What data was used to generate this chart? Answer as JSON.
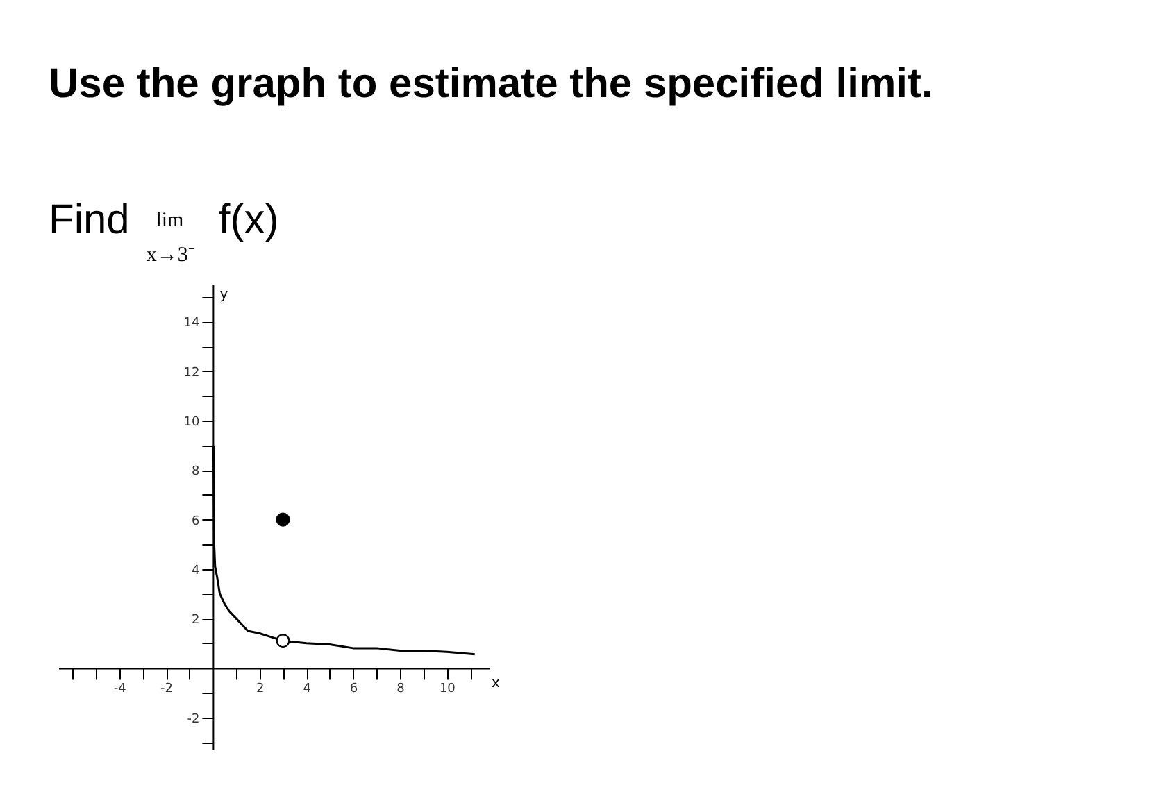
{
  "chart_data": {
    "type": "line",
    "title": "Use the graph to estimate the specified limit.",
    "subtitle": "Find lim$_{x→3⁻}$ f(x)",
    "xlabel": "x",
    "ylabel": "y",
    "xlim": [
      -6.6,
      11.8
    ],
    "ylim": [
      -3.3,
      15.5
    ],
    "xticks": [
      {
        "value": -6,
        "label": null
      },
      {
        "value": -5,
        "label": null
      },
      -4,
      {
        "value": -3,
        "label": null
      },
      -2,
      {
        "value": -1,
        "label": null
      },
      {
        "value": 1,
        "label": null
      },
      2,
      {
        "value": 3,
        "label": null
      },
      4,
      {
        "value": 5,
        "label": null
      },
      6,
      {
        "value": 7,
        "label": null
      },
      8,
      {
        "value": 9,
        "label": null
      },
      10,
      {
        "value": 11,
        "label": null
      }
    ],
    "yticks": [
      {
        "value": -3,
        "label": null
      },
      -2,
      {
        "value": -1,
        "label": null
      },
      {
        "value": 1,
        "label": null
      },
      2,
      {
        "value": 3,
        "label": null
      },
      4,
      {
        "value": 5,
        "label": null
      },
      6,
      {
        "value": 7,
        "label": null
      },
      8,
      {
        "value": 9,
        "label": null
      },
      10,
      {
        "value": 11,
        "label": null
      },
      12,
      {
        "value": 13,
        "label": null
      },
      14,
      {
        "value": 15,
        "label": null
      }
    ],
    "grid": false,
    "series": [
      {
        "type": "line",
        "color": "#000000",
        "x": [
          0.03,
          0.06,
          0.1,
          0.2,
          0.3,
          0.5,
          0.7,
          1.0,
          1.5,
          2.0,
          2.5,
          3.0
        ],
        "values": [
          9,
          5,
          4.1,
          3.6,
          3.0,
          2.6,
          2.3,
          2.0,
          1.5,
          1.4,
          1.25,
          1.1
        ]
      },
      {
        "type": "line",
        "color": "#000000",
        "x": [
          3.0,
          4.0,
          5.0,
          6.0,
          7.0,
          8.0,
          9.0,
          10.0,
          11.2
        ],
        "values": [
          1.1,
          1.0,
          0.95,
          0.8,
          0.8,
          0.7,
          0.7,
          0.65,
          0.55
        ]
      },
      {
        "type": "scatter",
        "marker": "circle",
        "color": "#ffffff",
        "x": [
          3
        ],
        "values": [
          1.1
        ]
      },
      {
        "type": "scatter",
        "marker": "circle",
        "color": "#000000",
        "x": [
          3
        ],
        "values": [
          6
        ]
      }
    ]
  }
}
